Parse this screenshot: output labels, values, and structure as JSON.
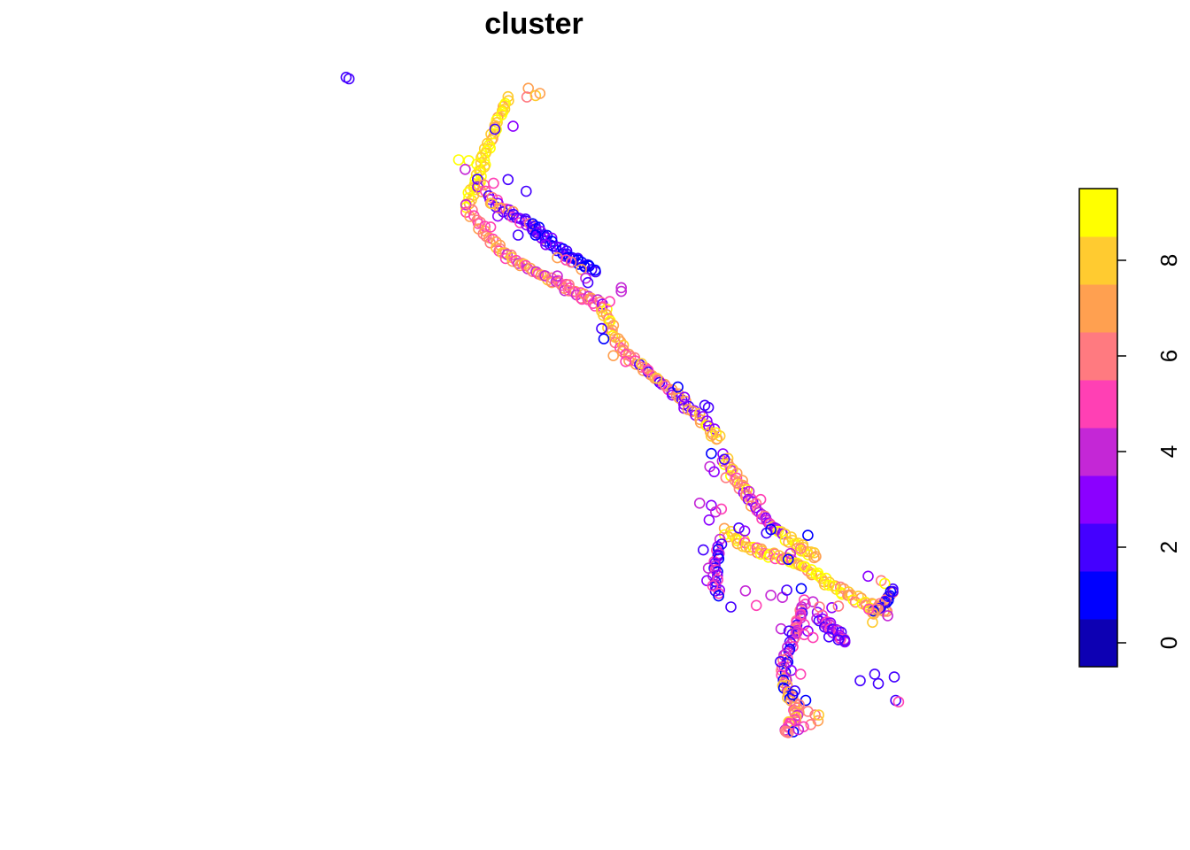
{
  "chart_data": {
    "type": "scatter",
    "title": "cluster",
    "xlabel": "",
    "ylabel": "",
    "marker": "open-circle",
    "color_scale": {
      "name": "plasma",
      "range": [
        -0.5,
        9.5
      ],
      "bins": [
        {
          "value": 0,
          "color": "#0D00B3"
        },
        {
          "value": 1,
          "color": "#0000FF"
        },
        {
          "value": 2,
          "color": "#4400FF"
        },
        {
          "value": 3,
          "color": "#8B00FF"
        },
        {
          "value": 4,
          "color": "#C427D6"
        },
        {
          "value": 5,
          "color": "#FF40B4"
        },
        {
          "value": 6,
          "color": "#FF7A80"
        },
        {
          "value": 7,
          "color": "#FFA050"
        },
        {
          "value": 8,
          "color": "#FFCB30"
        },
        {
          "value": 9,
          "color": "#FFFF00"
        }
      ],
      "ticks": [
        0,
        2,
        4,
        6,
        8
      ],
      "tick_labels": [
        "0",
        "2",
        "4",
        "6",
        "8"
      ],
      "legend_position": "right"
    },
    "xlim": [
      0,
      100
    ],
    "ylim": [
      0,
      100
    ],
    "paths": [
      {
        "points": [
          [
            46.8,
            94.9
          ],
          [
            46.0,
            93.4
          ],
          [
            45.2,
            91.4
          ],
          [
            44.4,
            89.2
          ],
          [
            43.6,
            87.5
          ],
          [
            43.2,
            85.6
          ],
          [
            42.6,
            83.6
          ],
          [
            41.8,
            82.1
          ],
          [
            41.0,
            80.1
          ]
        ],
        "values": [
          8,
          9,
          8,
          7,
          9,
          8,
          9,
          8,
          9
        ]
      },
      {
        "points": [
          [
            42.6,
            83.6
          ],
          [
            44.2,
            81.4
          ],
          [
            45.8,
            80.1
          ],
          [
            47.2,
            79.2
          ],
          [
            48.8,
            78.3
          ],
          [
            50.2,
            77.5
          ],
          [
            51.4,
            75.9
          ]
        ],
        "values": [
          2,
          3,
          6,
          7,
          5,
          2,
          3
        ]
      },
      {
        "points": [
          [
            50.2,
            77.5
          ],
          [
            51.8,
            76.2
          ],
          [
            53.2,
            74.9
          ],
          [
            54.6,
            73.8
          ],
          [
            56.0,
            72.9
          ],
          [
            57.4,
            72.2
          ],
          [
            58.8,
            71.5
          ]
        ],
        "values": [
          1,
          2,
          1,
          2,
          3,
          2,
          1
        ]
      },
      {
        "points": [
          [
            41.0,
            80.1
          ],
          [
            42.6,
            78.1
          ],
          [
            44.0,
            76.2
          ],
          [
            45.4,
            74.6
          ],
          [
            46.8,
            73.4
          ],
          [
            48.4,
            72.4
          ],
          [
            50.2,
            71.5
          ],
          [
            52.0,
            70.5
          ],
          [
            53.6,
            69.8
          ],
          [
            55.2,
            68.9
          ],
          [
            56.8,
            68.0
          ],
          [
            58.4,
            67.4
          ],
          [
            59.8,
            66.5
          ]
        ],
        "values": [
          4,
          5,
          6,
          7,
          5,
          6,
          7,
          8,
          4,
          5,
          6,
          7,
          5
        ]
      },
      {
        "points": [
          [
            59.8,
            66.5
          ],
          [
            60.6,
            64.6
          ],
          [
            61.4,
            62.6
          ],
          [
            62.4,
            60.9
          ],
          [
            63.8,
            59.4
          ],
          [
            65.4,
            58.1
          ],
          [
            67.0,
            56.8
          ],
          [
            68.6,
            55.5
          ],
          [
            70.2,
            54.2
          ],
          [
            71.6,
            52.7
          ],
          [
            73.2,
            51.4
          ],
          [
            74.6,
            49.9
          ],
          [
            75.6,
            48.4
          ]
        ],
        "values": [
          3,
          8,
          9,
          8,
          7,
          6,
          7,
          5,
          6,
          2,
          7,
          3,
          7
        ]
      },
      {
        "points": [
          [
            76.4,
            46.0
          ],
          [
            77.4,
            44.3
          ],
          [
            78.6,
            42.4
          ],
          [
            79.4,
            41.1
          ],
          [
            80.6,
            39.5
          ],
          [
            81.8,
            37.8
          ],
          [
            83.2,
            36.5
          ],
          [
            84.6,
            35.4
          ]
        ],
        "values": [
          3,
          4,
          8,
          9,
          7,
          6,
          5,
          3
        ]
      },
      {
        "points": [
          [
            76.6,
            35.8
          ],
          [
            78.2,
            34.7
          ],
          [
            79.8,
            33.7
          ],
          [
            81.4,
            33.0
          ],
          [
            83.0,
            32.5
          ],
          [
            84.6,
            32.1
          ],
          [
            86.2,
            31.6
          ],
          [
            87.8,
            30.7
          ],
          [
            89.4,
            29.7
          ],
          [
            91.0,
            28.6
          ],
          [
            92.6,
            27.7
          ],
          [
            94.2,
            26.8
          ],
          [
            95.8,
            26.0
          ],
          [
            97.4,
            25.3
          ],
          [
            99.0,
            24.8
          ]
        ],
        "values": [
          7,
          9,
          8,
          7,
          9,
          8,
          5,
          6,
          9,
          8,
          9,
          7,
          9,
          8,
          6
        ]
      },
      {
        "points": [
          [
            85.0,
            35.0
          ],
          [
            86.4,
            34.0
          ],
          [
            87.8,
            33.1
          ],
          [
            89.2,
            32.3
          ]
        ],
        "values": [
          8,
          9,
          8,
          7
        ]
      },
      {
        "points": [
          [
            76.0,
            34.3
          ],
          [
            75.6,
            32.5
          ],
          [
            75.4,
            30.8
          ],
          [
            75.4,
            28.8
          ],
          [
            75.8,
            26.9
          ]
        ],
        "values": [
          4,
          3,
          2,
          5,
          1
        ]
      },
      {
        "points": [
          [
            87.6,
            26.0
          ],
          [
            87.0,
            24.4
          ],
          [
            86.6,
            22.7
          ],
          [
            86.0,
            20.9
          ],
          [
            85.4,
            19.3
          ],
          [
            84.8,
            17.6
          ],
          [
            84.8,
            15.8
          ],
          [
            85.0,
            14.2
          ],
          [
            85.8,
            12.7
          ],
          [
            86.6,
            11.4
          ],
          [
            86.4,
            10.1
          ],
          [
            85.6,
            9.4
          ],
          [
            85.0,
            8.4
          ]
        ],
        "values": [
          5,
          4,
          5,
          6,
          4,
          2,
          5,
          4,
          1,
          6,
          7,
          8,
          6
        ]
      },
      {
        "points": [
          [
            89.4,
            24.3
          ],
          [
            90.4,
            23.2
          ],
          [
            91.4,
            22.5
          ],
          [
            92.4,
            21.6
          ],
          [
            93.2,
            20.6
          ]
        ],
        "values": [
          3,
          4,
          5,
          2,
          3
        ]
      },
      {
        "points": [
          [
            99.8,
            27.5
          ],
          [
            98.8,
            26.2
          ],
          [
            98.0,
            25.4
          ],
          [
            97.0,
            24.6
          ]
        ],
        "values": [
          2,
          1,
          6,
          7
        ]
      }
    ],
    "points": [
      [
        24.5,
        97.9,
        2
      ],
      [
        24.9,
        97.7,
        2
      ],
      [
        49.6,
        96.4,
        7
      ],
      [
        49.4,
        95.2,
        6
      ],
      [
        50.6,
        95.4,
        8
      ],
      [
        51.2,
        95.7,
        7
      ],
      [
        47.5,
        91.2,
        3
      ],
      [
        45.0,
        90.8,
        2
      ],
      [
        40.0,
        86.6,
        9
      ],
      [
        41.4,
        86.5,
        9
      ],
      [
        42.5,
        86.0,
        9
      ],
      [
        40.9,
        85.3,
        4
      ],
      [
        44.8,
        83.4,
        5
      ],
      [
        46.8,
        83.9,
        2
      ],
      [
        49.3,
        82.3,
        2
      ],
      [
        44.6,
        80.6,
        8
      ],
      [
        45.7,
        80.0,
        7
      ],
      [
        45.4,
        78.9,
        3
      ],
      [
        44.4,
        77.4,
        5
      ],
      [
        48.2,
        76.3,
        2
      ],
      [
        50.6,
        76.3,
        1
      ],
      [
        52.0,
        75.0,
        3
      ],
      [
        53.6,
        73.2,
        7
      ],
      [
        54.8,
        72.9,
        5
      ],
      [
        55.5,
        72.6,
        6
      ],
      [
        56.9,
        71.6,
        7
      ],
      [
        57.5,
        70.4,
        4
      ],
      [
        57.8,
        69.8,
        2
      ],
      [
        53.6,
        70.7,
        4
      ],
      [
        55.2,
        69.5,
        6
      ],
      [
        62.4,
        69.1,
        4
      ],
      [
        62.4,
        68.6,
        4
      ],
      [
        60.8,
        67.2,
        5
      ],
      [
        59.7,
        63.5,
        2
      ],
      [
        60.0,
        62.1,
        1
      ],
      [
        61.3,
        59.8,
        7
      ],
      [
        63.0,
        59.0,
        5
      ],
      [
        65.2,
        58.7,
        8
      ],
      [
        66.1,
        57.8,
        5
      ],
      [
        67.3,
        56.7,
        8
      ],
      [
        70.2,
        55.5,
        1
      ],
      [
        71.1,
        54.1,
        3
      ],
      [
        73.9,
        53.0,
        2
      ],
      [
        74.4,
        52.7,
        2
      ],
      [
        75.0,
        49.0,
        7
      ],
      [
        76.0,
        48.8,
        8
      ],
      [
        74.8,
        46.4,
        1
      ],
      [
        76.6,
        45.6,
        2
      ],
      [
        74.6,
        44.6,
        4
      ],
      [
        75.2,
        43.9,
        3
      ],
      [
        76.8,
        43.1,
        6
      ],
      [
        78.4,
        42.4,
        6
      ],
      [
        79.1,
        42.7,
        7
      ],
      [
        80.0,
        41.2,
        4
      ],
      [
        81.6,
        40.1,
        5
      ],
      [
        73.2,
        39.6,
        4
      ],
      [
        74.8,
        39.3,
        3
      ],
      [
        75.4,
        38.4,
        4
      ],
      [
        76.2,
        38.8,
        5
      ],
      [
        74.5,
        37.3,
        3
      ],
      [
        78.6,
        36.2,
        2
      ],
      [
        79.4,
        35.8,
        3
      ],
      [
        82.4,
        35.5,
        2
      ],
      [
        83.0,
        36.0,
        1
      ],
      [
        88.1,
        35.2,
        1
      ],
      [
        85.7,
        32.7,
        4
      ],
      [
        85.4,
        31.9,
        1
      ],
      [
        87.1,
        33.4,
        6
      ],
      [
        73.7,
        33.2,
        2
      ],
      [
        74.4,
        30.7,
        4
      ],
      [
        74.2,
        29.0,
        3
      ],
      [
        75.0,
        28.3,
        5
      ],
      [
        77.5,
        25.4,
        2
      ],
      [
        79.5,
        27.6,
        4
      ],
      [
        81.0,
        25.6,
        5
      ],
      [
        83.0,
        27.0,
        4
      ],
      [
        84.6,
        26.7,
        4
      ],
      [
        85.2,
        27.7,
        2
      ],
      [
        87.2,
        27.9,
        1
      ],
      [
        88.8,
        26.1,
        4
      ],
      [
        89.7,
        25.4,
        6
      ],
      [
        91.4,
        25.3,
        3
      ],
      [
        92.3,
        25.5,
        6
      ],
      [
        96.4,
        29.6,
        3
      ],
      [
        98.2,
        29.0,
        6
      ],
      [
        98.7,
        28.6,
        9
      ],
      [
        99.5,
        27.5,
        1
      ],
      [
        99.8,
        27.5,
        2
      ],
      [
        99.1,
        24.2,
        4
      ],
      [
        97.0,
        23.3,
        8
      ],
      [
        96.5,
        25.1,
        5
      ],
      [
        87.6,
        23.0,
        5
      ],
      [
        88.1,
        22.1,
        3
      ],
      [
        91.0,
        21.3,
        2
      ],
      [
        92.3,
        20.9,
        2
      ],
      [
        84.4,
        22.4,
        4
      ],
      [
        85.5,
        22.1,
        2
      ],
      [
        86.6,
        21.9,
        4
      ],
      [
        87.6,
        21.6,
        5
      ],
      [
        88.8,
        21.2,
        5
      ],
      [
        84.3,
        17.9,
        2
      ],
      [
        85.8,
        16.7,
        3
      ],
      [
        87.1,
        16.2,
        5
      ],
      [
        86.3,
        13.9,
        2
      ],
      [
        86.0,
        13.4,
        1
      ],
      [
        87.8,
        12.6,
        1
      ],
      [
        86.9,
        12.0,
        6
      ],
      [
        88.1,
        11.1,
        6
      ],
      [
        89.1,
        10.6,
        6
      ],
      [
        89.5,
        9.8,
        7
      ],
      [
        89.6,
        10.6,
        8
      ],
      [
        88.5,
        9.3,
        6
      ],
      [
        87.5,
        9.0,
        5
      ],
      [
        95.3,
        15.3,
        2
      ],
      [
        97.3,
        16.2,
        2
      ],
      [
        97.8,
        14.9,
        2
      ],
      [
        100.0,
        15.8,
        2
      ],
      [
        100.2,
        12.6,
        2
      ],
      [
        100.6,
        12.4,
        5
      ],
      [
        86.1,
        8.3,
        1
      ],
      [
        85.4,
        8.2,
        6
      ],
      [
        86.8,
        8.6,
        4
      ]
    ]
  }
}
